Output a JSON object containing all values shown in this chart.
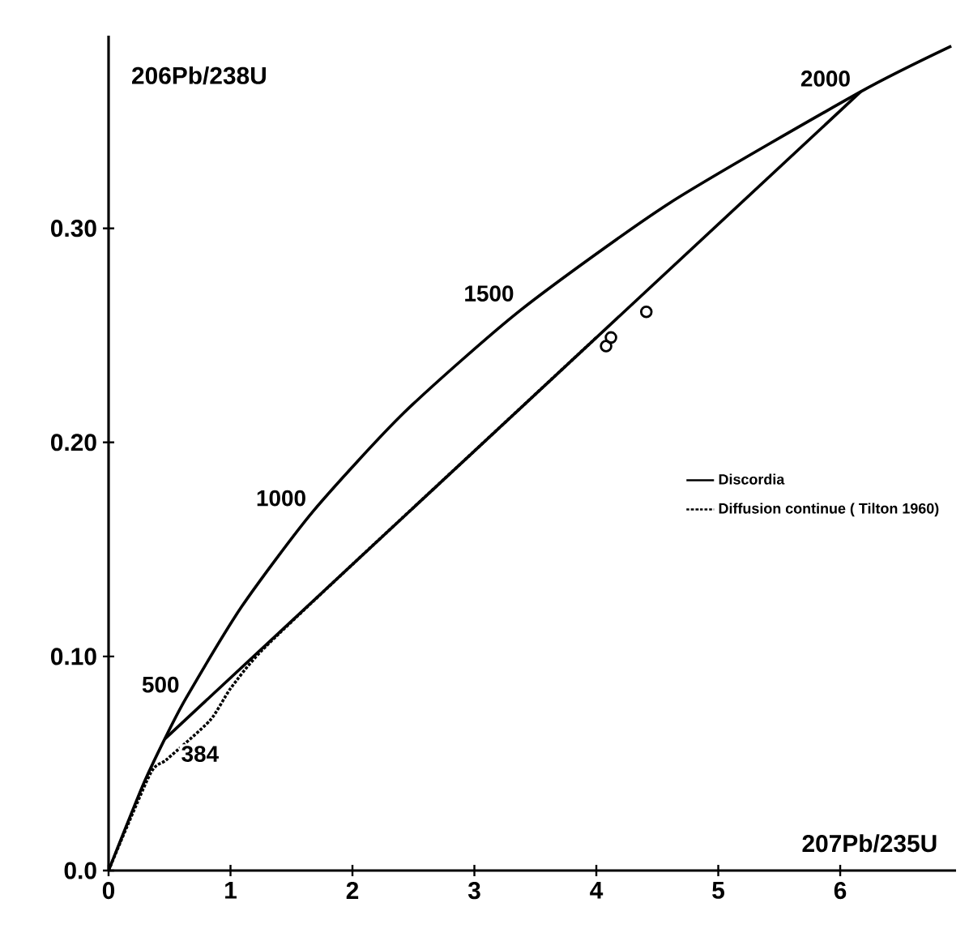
{
  "chart_data": {
    "type": "line",
    "xlabel": "207Pb/235U",
    "ylabel": "206Pb/238U",
    "xlim": [
      0,
      6.95
    ],
    "ylim": [
      0,
      0.39
    ],
    "xticks": [
      0,
      1,
      2,
      3,
      4,
      5,
      6
    ],
    "yticks": [
      {
        "value": 0,
        "label": "0.0"
      },
      {
        "value": 0.1,
        "label": "0.10"
      },
      {
        "value": 0.2,
        "label": "0.20"
      },
      {
        "value": 0.3,
        "label": "0.30"
      }
    ],
    "grid": false,
    "legend": "right",
    "marker": "none",
    "series": [
      {
        "color": "#000000",
        "line_style": "solid",
        "x": [
          0,
          0.279,
          0.46,
          0.637,
          1.093,
          1.677,
          2.425,
          3.381,
          4.604,
          6.168,
          6.911
        ],
        "values": [
          0,
          0.0395,
          0.0614,
          0.0807,
          0.1234,
          0.1678,
          0.214,
          0.2619,
          0.3119,
          0.3638,
          0.3851
        ]
      },
      {
        "name": "Discordia",
        "color": "#000000",
        "line_style": "solid",
        "x": [
          0.46,
          6.168
        ],
        "values": [
          0.0614,
          0.3638
        ]
      },
      {
        "name": "Diffusion continue ( Tilton 1960)",
        "color": "#000000",
        "line_style": "dotted",
        "x": [
          0,
          0.34,
          0.48,
          0.83,
          1.0,
          1.26,
          2.0,
          3.0,
          4.0
        ],
        "values": [
          0,
          0.045,
          0.052,
          0.07,
          0.085,
          0.103,
          0.143,
          0.196,
          0.249
        ]
      },
      {
        "type": "scatter",
        "marker": "circle",
        "color": "#000000",
        "x": [
          4.08,
          4.12,
          4.41
        ],
        "values": [
          0.245,
          0.249,
          0.261
        ]
      }
    ],
    "annotations": [
      {
        "text": "500",
        "x": 0.637,
        "y": 0.0807
      },
      {
        "text": "1000",
        "x": 1.677,
        "y": 0.1678
      },
      {
        "text": "1500",
        "x": 3.381,
        "y": 0.2619
      },
      {
        "text": "2000",
        "x": 6.168,
        "y": 0.3638
      },
      {
        "text": "384",
        "x": 0.46,
        "y": 0.0614
      }
    ]
  }
}
